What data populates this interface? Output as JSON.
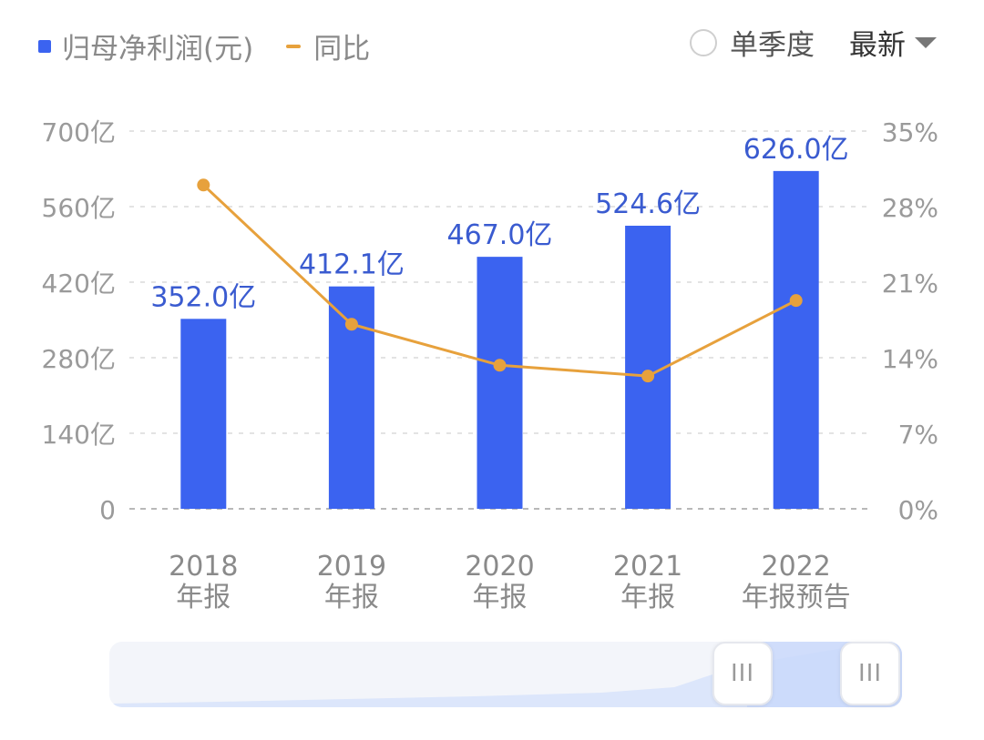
{
  "header": {
    "legend": [
      {
        "label": "归母净利润(元)",
        "marker": "square",
        "color": "#3b63f0"
      },
      {
        "label": "同比",
        "marker": "line",
        "color": "#e7a13c"
      }
    ],
    "single_quarter_label": "单季度",
    "latest_label": "最新"
  },
  "slider": {
    "grip_left": "III",
    "grip_right": "III"
  },
  "chart_data": {
    "type": "bar",
    "categories": [
      "2018\n年报",
      "2019\n年报",
      "2020\n年报",
      "2021\n年报",
      "2022\n年报预告"
    ],
    "series": [
      {
        "name": "归母净利润(元)",
        "type": "bar",
        "values": [
          352.0,
          412.1,
          467.0,
          524.6,
          626.0
        ],
        "labels": [
          "352.0亿",
          "412.1亿",
          "467.0亿",
          "524.6亿",
          "626.0亿"
        ],
        "axis": "left",
        "color": "#3b63f0"
      },
      {
        "name": "同比",
        "type": "line",
        "values": [
          30.0,
          17.1,
          13.3,
          12.3,
          19.3
        ],
        "axis": "right",
        "color": "#e7a13c"
      }
    ],
    "y_left": {
      "ylim": [
        0,
        700
      ],
      "ticks": [
        "0",
        "140亿",
        "280亿",
        "420亿",
        "560亿",
        "700亿"
      ],
      "tick_values": [
        0,
        140,
        280,
        420,
        560,
        700
      ]
    },
    "y_right": {
      "ylim": [
        0,
        35
      ],
      "ticks": [
        "0%",
        "7%",
        "14%",
        "21%",
        "28%",
        "35%"
      ],
      "tick_values": [
        0,
        7,
        14,
        21,
        28,
        35
      ]
    },
    "grid": true
  }
}
